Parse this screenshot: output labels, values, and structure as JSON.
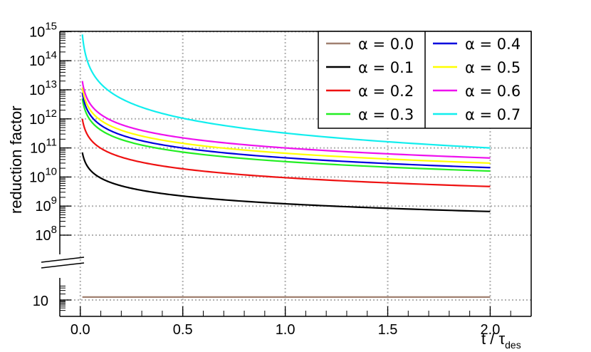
{
  "chart_data": {
    "type": "line",
    "xlabel": "t / τ",
    "xlabel_sub": "des",
    "ylabel": "reduction factor",
    "xlim": [
      -0.1,
      2.2
    ],
    "x_ticks": [
      "0.0",
      "0.5",
      "1.0",
      "1.5",
      "2.0"
    ],
    "x_tick_values": [
      0,
      0.5,
      1.0,
      1.5,
      2.0
    ],
    "y_scale": "log (broken axis)",
    "y_upper_range": [
      100000000.0,
      1000000000000000.0
    ],
    "y_lower_range": [
      1,
      100
    ],
    "y_ticks_upper": [
      {
        "base": "10",
        "exp": "15",
        "value": 1000000000000000.0
      },
      {
        "base": "10",
        "exp": "14",
        "value": 100000000000000.0
      },
      {
        "base": "10",
        "exp": "13",
        "value": 10000000000000.0
      },
      {
        "base": "10",
        "exp": "12",
        "value": 1000000000000.0
      },
      {
        "base": "10",
        "exp": "11",
        "value": 100000000000.0
      },
      {
        "base": "10",
        "exp": "10",
        "value": 10000000000.0
      },
      {
        "base": "10",
        "exp": "9",
        "value": 1000000000.0
      },
      {
        "base": "10",
        "exp": "8",
        "value": 100000000.0
      }
    ],
    "y_ticks_lower": [
      {
        "label": "10",
        "value": 10
      }
    ],
    "grid": true,
    "legend_position": "top-right",
    "series": [
      {
        "name": "α = 0.0",
        "color": "#a08070",
        "alpha": 0.0,
        "constant": 14,
        "segment": "lower"
      },
      {
        "name": "α = 0.1",
        "color": "#000000",
        "alpha": 0.1,
        "x0": 0.01,
        "y0": 70000000000.0,
        "y_end": 650000000.0,
        "segment": "upper"
      },
      {
        "name": "α = 0.2",
        "color": "#ee1111",
        "alpha": 0.2,
        "x0": 0.01,
        "y0": 1000000000000.0,
        "y_end": 4700000000.0,
        "segment": "upper"
      },
      {
        "name": "α = 0.3",
        "color": "#22ee22",
        "alpha": 0.3,
        "x0": 0.01,
        "y0": 5000000000000.0,
        "y_end": 16000000000.0,
        "segment": "upper"
      },
      {
        "name": "α = 0.4",
        "color": "#0000dd",
        "alpha": 0.4,
        "x0": 0.01,
        "y0": 8000000000000.0,
        "y_end": 21000000000.0,
        "segment": "upper"
      },
      {
        "name": "α = 0.5",
        "color": "#ffff00",
        "alpha": 0.5,
        "x0": 0.01,
        "y0": 12000000000000.0,
        "y_end": 30000000000.0,
        "segment": "upper"
      },
      {
        "name": "α = 0.6",
        "color": "#ee11ee",
        "alpha": 0.6,
        "x0": 0.01,
        "y0": 20000000000000.0,
        "y_end": 45000000000.0,
        "segment": "upper"
      },
      {
        "name": "α = 0.7",
        "color": "#11eeee",
        "alpha": 0.7,
        "x0": 0.01,
        "y0": 800000000000000.0,
        "y_end": 100000000000.0,
        "segment": "upper"
      }
    ],
    "x_end": 2.0
  }
}
